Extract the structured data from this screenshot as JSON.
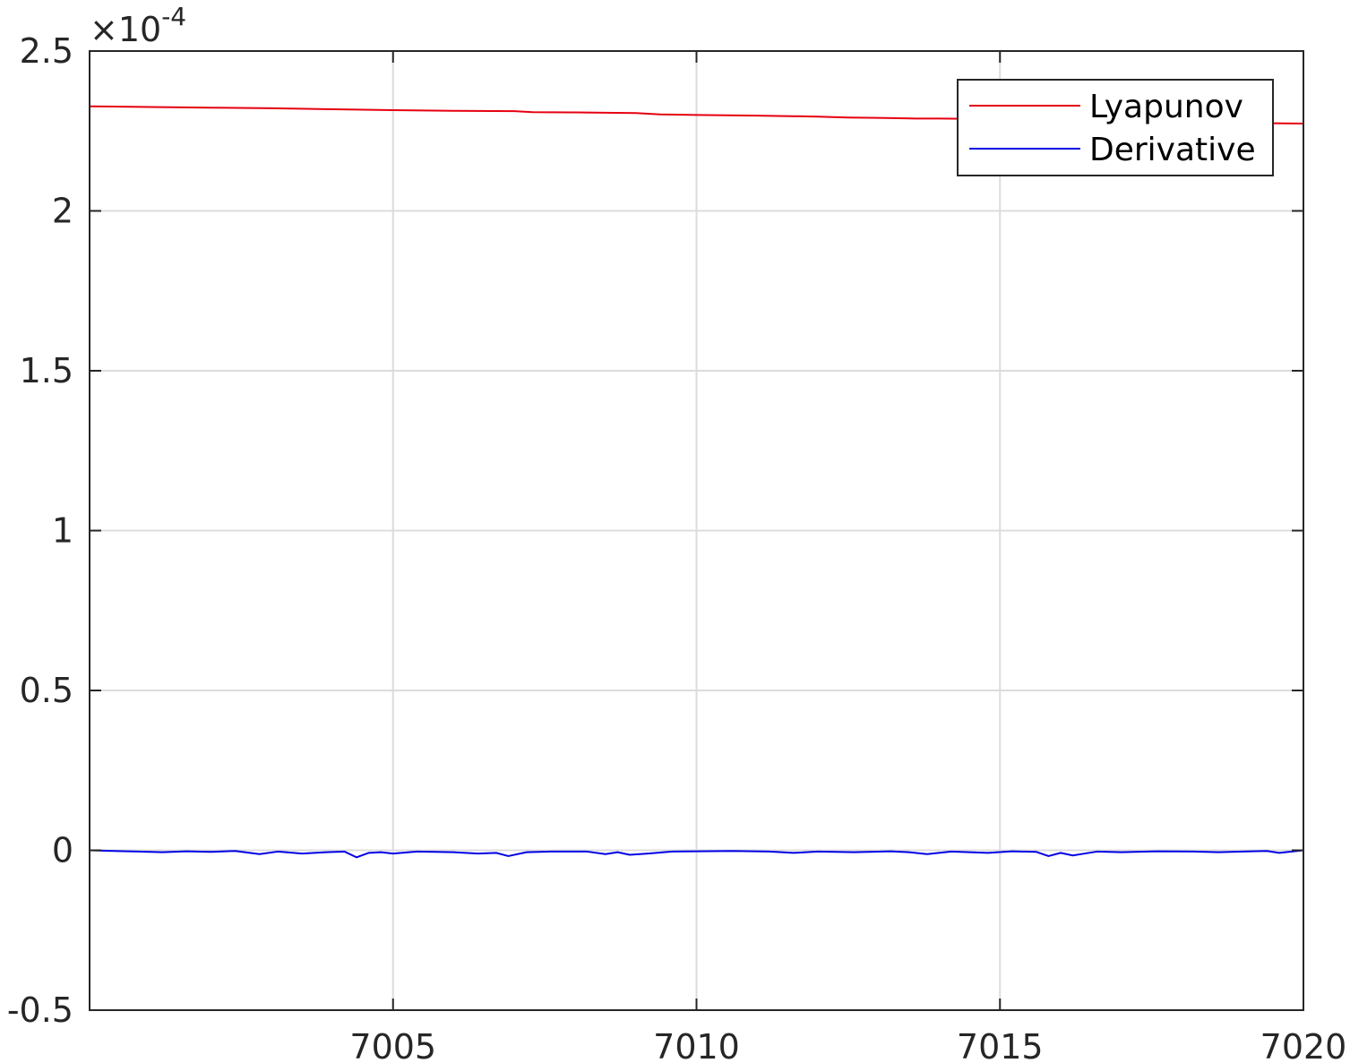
{
  "chart_data": {
    "type": "line",
    "title": "",
    "xlabel": "",
    "ylabel": "",
    "xlim": [
      7000,
      7020
    ],
    "ylim": [
      -0.5,
      2.5
    ],
    "y_exponent": {
      "times": "×10",
      "power": "-4"
    },
    "grid": true,
    "legend_position": "top-right",
    "xticks": [
      7005,
      7010,
      7015,
      7020
    ],
    "xtick_labels": [
      "7005",
      "7010",
      "7015",
      "7020"
    ],
    "yticks": [
      -0.5,
      0,
      0.5,
      1,
      1.5,
      2,
      2.5
    ],
    "ytick_labels": [
      "-0.5",
      "0",
      "0.5",
      "1",
      "1.5",
      "2",
      "2.5"
    ],
    "series": [
      {
        "name": "Lyapunov",
        "color": "#e6000f",
        "x": [
          7000,
          7001,
          7002,
          7003,
          7004,
          7005,
          7006,
          7007,
          7007.3,
          7008,
          7009,
          7009.4,
          7010,
          7011,
          7012,
          7012.5,
          7013,
          7013.6,
          7014,
          7015,
          7016,
          7017,
          7018,
          7018.5,
          7019,
          7020
        ],
        "y": [
          2.327,
          2.325,
          2.323,
          2.321,
          2.318,
          2.315,
          2.313,
          2.312,
          2.309,
          2.308,
          2.306,
          2.302,
          2.3,
          2.298,
          2.295,
          2.292,
          2.291,
          2.289,
          2.289,
          2.287,
          2.285,
          2.283,
          2.281,
          2.277,
          2.275,
          2.273
        ]
      },
      {
        "name": "Derivative",
        "color": "#0000e6",
        "x": [
          7000,
          7000.8,
          7001.2,
          7001.6,
          7002.0,
          7002.4,
          7002.8,
          7003.1,
          7003.5,
          7003.9,
          7004.2,
          7004.4,
          7004.6,
          7004.8,
          7005.0,
          7005.4,
          7006.0,
          7006.4,
          7006.7,
          7006.9,
          7007.2,
          7007.6,
          7008.2,
          7008.5,
          7008.7,
          7008.9,
          7009.2,
          7009.6,
          7010.0,
          7010.6,
          7011.2,
          7011.6,
          7012.0,
          7012.6,
          7013.2,
          7013.5,
          7013.8,
          7014.2,
          7014.8,
          7015.2,
          7015.6,
          7015.8,
          7016.0,
          7016.2,
          7016.4,
          7016.6,
          7017.0,
          7017.6,
          7018.2,
          7018.6,
          7019.0,
          7019.4,
          7019.6,
          7020.0
        ],
        "y": [
          0.0,
          -0.004,
          -0.006,
          -0.003,
          -0.005,
          -0.002,
          -0.012,
          -0.004,
          -0.01,
          -0.006,
          -0.004,
          -0.022,
          -0.008,
          -0.006,
          -0.01,
          -0.004,
          -0.006,
          -0.01,
          -0.008,
          -0.018,
          -0.006,
          -0.004,
          -0.004,
          -0.012,
          -0.006,
          -0.014,
          -0.01,
          -0.004,
          -0.003,
          -0.002,
          -0.004,
          -0.008,
          -0.004,
          -0.006,
          -0.003,
          -0.006,
          -0.012,
          -0.004,
          -0.008,
          -0.003,
          -0.005,
          -0.018,
          -0.008,
          -0.016,
          -0.01,
          -0.004,
          -0.006,
          -0.003,
          -0.004,
          -0.006,
          -0.004,
          -0.002,
          -0.008,
          0.0
        ]
      }
    ]
  }
}
